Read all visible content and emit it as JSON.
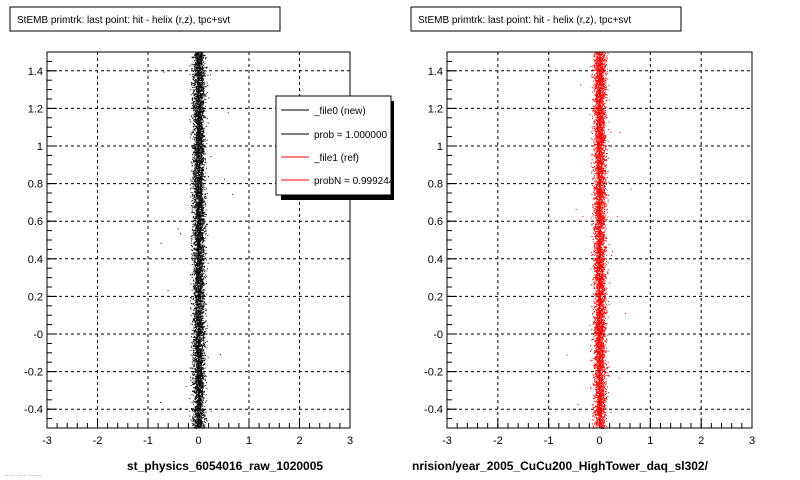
{
  "panels": [
    {
      "title": "StEMB primtrk: last point: hit - helix (r,z), tpc+svt",
      "xlabel": "st_physics_6054016_raw_1020005",
      "point_color": "#000000",
      "legend": {
        "entries": [
          {
            "label": "_file0 (new)",
            "color": "#000000"
          },
          {
            "label": "prob = 1.000000",
            "color": "#000000"
          },
          {
            "label": "_file1 (ref)",
            "color": "#ff0000"
          },
          {
            "label": "probN = 0.999244",
            "color": "#ff0000"
          }
        ]
      }
    },
    {
      "title": "StEMB primtrk: last point: hit - helix (r,z), tpc+svt",
      "xlabel": "nrision/year_2005_CuCu200_HighTower_daq_sl302/",
      "point_color": "#ff0000"
    }
  ],
  "footer_text": "...... ...... ........",
  "chart_data": [
    {
      "type": "scatter",
      "title": "StEMB primtrk: last point: hit - helix (r,z), tpc+svt",
      "xlabel": "st_physics_6054016_raw_1020005",
      "ylabel": "",
      "xlim": [
        -3,
        3
      ],
      "ylim": [
        -0.5,
        1.5
      ],
      "x_ticks": [
        "-3",
        "-2",
        "-1",
        "0",
        "1",
        "2",
        "3"
      ],
      "y_ticks": [
        "-0.4",
        "-0.2",
        "-0",
        "0.2",
        "0.4",
        "0.6",
        "0.8",
        "1",
        "1.2",
        "1.4"
      ],
      "grid": true,
      "series": [
        {
          "name": "_file0 (new)",
          "color": "#000000",
          "distribution": {
            "x_center": 0.0,
            "x_spread": 0.1,
            "x_min": -0.2,
            "x_max": 0.25,
            "y_min": -0.5,
            "y_max": 1.5,
            "n_points": 6000
          }
        }
      ]
    },
    {
      "type": "scatter",
      "title": "StEMB primtrk: last point: hit - helix (r,z), tpc+svt",
      "xlabel": "nrision/year_2005_CuCu200_HighTower_daq_sl302/",
      "ylabel": "",
      "xlim": [
        -3,
        3
      ],
      "ylim": [
        -0.5,
        1.5
      ],
      "x_ticks": [
        "-3",
        "-2",
        "-1",
        "0",
        "1",
        "2",
        "3"
      ],
      "y_ticks": [
        "-0.4",
        "-0.2",
        "-0",
        "0.2",
        "0.4",
        "0.6",
        "0.8",
        "1",
        "1.2",
        "1.4"
      ],
      "grid": true,
      "series": [
        {
          "name": "_file1 (ref)",
          "color": "#ff0000",
          "distribution": {
            "x_center": 0.0,
            "x_spread": 0.1,
            "x_min": -0.2,
            "x_max": 0.25,
            "y_min": -0.5,
            "y_max": 1.5,
            "n_points": 6000
          }
        }
      ]
    }
  ]
}
